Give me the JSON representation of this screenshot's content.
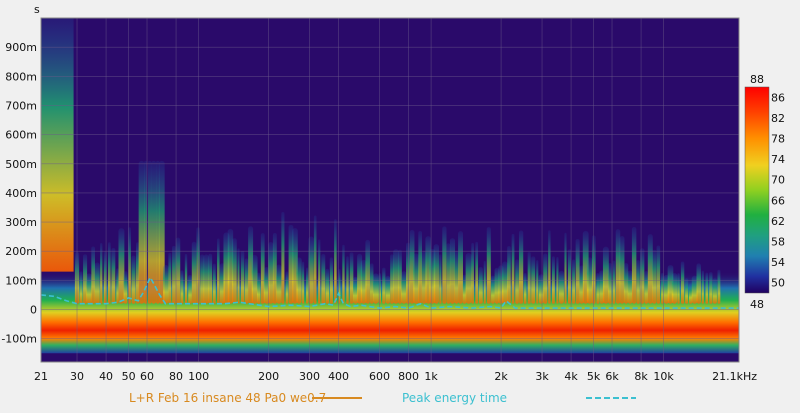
{
  "chart_data": {
    "type": "heatmap",
    "title": "",
    "ylabel": "s",
    "xlabel": "",
    "x_scale": "log",
    "xlim": [
      21,
      21100
    ],
    "ylim": [
      -0.18,
      1.0
    ],
    "x_ticks": [
      {
        "value": 21,
        "label": "21"
      },
      {
        "value": 30,
        "label": "30"
      },
      {
        "value": 40,
        "label": "40"
      },
      {
        "value": 50,
        "label": "50"
      },
      {
        "value": 60,
        "label": "60"
      },
      {
        "value": 80,
        "label": "80"
      },
      {
        "value": 100,
        "label": "100"
      },
      {
        "value": 200,
        "label": "200"
      },
      {
        "value": 300,
        "label": "300"
      },
      {
        "value": 400,
        "label": "400"
      },
      {
        "value": 600,
        "label": "600"
      },
      {
        "value": 800,
        "label": "800"
      },
      {
        "value": 1000,
        "label": "1k"
      },
      {
        "value": 2000,
        "label": "2k"
      },
      {
        "value": 3000,
        "label": "3k"
      },
      {
        "value": 4000,
        "label": "4k"
      },
      {
        "value": 5000,
        "label": "5k"
      },
      {
        "value": 6000,
        "label": "6k"
      },
      {
        "value": 8000,
        "label": "8k"
      },
      {
        "value": 10000,
        "label": "10k"
      },
      {
        "value": 21100,
        "label": "21.1kHz"
      }
    ],
    "y_ticks": [
      {
        "value": 0.9,
        "label": "900m"
      },
      {
        "value": 0.8,
        "label": "800m"
      },
      {
        "value": 0.7,
        "label": "700m"
      },
      {
        "value": 0.6,
        "label": "600m"
      },
      {
        "value": 0.5,
        "label": "500m"
      },
      {
        "value": 0.4,
        "label": "400m"
      },
      {
        "value": 0.3,
        "label": "300m"
      },
      {
        "value": 0.2,
        "label": "200m"
      },
      {
        "value": 0.1,
        "label": "100m"
      },
      {
        "value": 0.0,
        "label": "0"
      },
      {
        "value": -0.1,
        "label": "-100m"
      }
    ],
    "colorbar": {
      "min": 48,
      "max": 88,
      "min_label": "48",
      "max_label": "88",
      "ticks": [
        {
          "value": 86,
          "label": "86"
        },
        {
          "value": 82,
          "label": "82"
        },
        {
          "value": 78,
          "label": "78"
        },
        {
          "value": 74,
          "label": "74"
        },
        {
          "value": 70,
          "label": "70"
        },
        {
          "value": 66,
          "label": "66"
        },
        {
          "value": 62,
          "label": "62"
        },
        {
          "value": 58,
          "label": "58"
        },
        {
          "value": 54,
          "label": "54"
        },
        {
          "value": 50,
          "label": "50"
        }
      ]
    },
    "series": [
      {
        "name": "L+R Feb 16 insane 48 Pa0 we0.7",
        "kind": "spectrogram",
        "color": "#d88a20"
      },
      {
        "name": "Peak energy time",
        "kind": "line",
        "color": "#3cc0d0",
        "dash": true,
        "x": [
          21,
          24,
          27,
          30,
          35,
          40,
          45,
          50,
          55,
          58,
          62,
          65,
          68,
          72,
          80,
          100,
          130,
          150,
          200,
          250,
          300,
          350,
          380,
          400,
          420,
          450,
          500,
          600,
          700,
          800,
          900,
          1000,
          1200,
          1500,
          1800,
          2000,
          2100,
          2300,
          2600,
          3000,
          4000,
          5000,
          6000,
          8000,
          10000,
          15000,
          21100
        ],
        "y": [
          0.05,
          0.045,
          0.03,
          0.02,
          0.02,
          0.02,
          0.025,
          0.04,
          0.03,
          0.06,
          0.11,
          0.08,
          0.05,
          0.02,
          0.02,
          0.02,
          0.02,
          0.025,
          0.01,
          0.015,
          0.01,
          0.02,
          0.015,
          0.055,
          0.02,
          0.01,
          0.015,
          0.005,
          0.01,
          0.005,
          0.02,
          0.005,
          0.01,
          0.005,
          0.01,
          0.005,
          0.03,
          0.005,
          0.005,
          0.005,
          0.005,
          0.005,
          0.005,
          0.005,
          0.005,
          0.005,
          0.005
        ]
      }
    ],
    "legend_position": "bottom",
    "grid": true,
    "colors": {
      "background": "#2a0a6a",
      "grid": "#6b5a8a"
    }
  }
}
